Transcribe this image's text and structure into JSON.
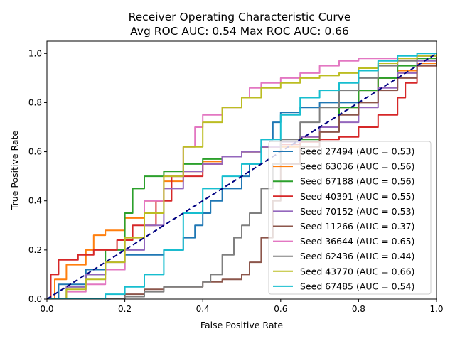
{
  "chart_data": {
    "type": "line",
    "title": "Receiver Operating Characteristic Curve",
    "subtitle": "Avg ROC AUC: 0.54  Max ROC AUC: 0.66",
    "xlabel": "False Positive Rate",
    "ylabel": "True Positive Rate",
    "xlim": [
      0,
      1
    ],
    "ylim": [
      0,
      1.05
    ],
    "xticks": [
      0.0,
      0.2,
      0.4,
      0.6,
      0.8,
      1.0
    ],
    "yticks": [
      0.0,
      0.2,
      0.4,
      0.6,
      0.8,
      1.0
    ],
    "xtick_labels": [
      "0.0",
      "0.2",
      "0.4",
      "0.6",
      "0.8",
      "1.0"
    ],
    "ytick_labels": [
      "0.0",
      "0.2",
      "0.4",
      "0.6",
      "0.8",
      "1.0"
    ],
    "grid": false,
    "legend_position": "lower-right",
    "diagonal": {
      "x": [
        0,
        1
      ],
      "y": [
        0,
        1
      ],
      "color": "#000080",
      "style": "dashed"
    },
    "series": [
      {
        "name": "Seed 27494 (AUC = 0.53)",
        "color": "#1f77b4",
        "x": [
          0,
          0.03,
          0.1,
          0.2,
          0.25,
          0.3,
          0.35,
          0.38,
          0.4,
          0.42,
          0.45,
          0.5,
          0.52,
          0.55,
          0.58,
          0.6,
          0.62,
          0.65,
          0.7,
          0.75,
          0.8,
          0.85,
          0.9,
          0.95,
          1.0
        ],
        "y": [
          0,
          0.06,
          0.12,
          0.18,
          0.18,
          0.2,
          0.25,
          0.3,
          0.35,
          0.4,
          0.45,
          0.5,
          0.55,
          0.65,
          0.72,
          0.76,
          0.76,
          0.78,
          0.8,
          0.8,
          0.85,
          0.9,
          0.93,
          0.96,
          1.0
        ]
      },
      {
        "name": "Seed 63036 (AUC = 0.56)",
        "color": "#ff7f0e",
        "x": [
          0,
          0.02,
          0.05,
          0.1,
          0.12,
          0.15,
          0.2,
          0.25,
          0.3,
          0.35,
          0.4,
          0.45,
          0.5,
          0.55,
          0.6,
          0.65,
          0.7,
          0.75,
          0.8,
          0.85,
          0.9,
          0.95,
          1.0
        ],
        "y": [
          0,
          0.08,
          0.14,
          0.2,
          0.26,
          0.28,
          0.33,
          0.4,
          0.48,
          0.52,
          0.56,
          0.58,
          0.6,
          0.62,
          0.62,
          0.66,
          0.7,
          0.78,
          0.85,
          0.9,
          0.93,
          0.96,
          1.0
        ]
      },
      {
        "name": "Seed 67188 (AUC = 0.56)",
        "color": "#2ca02c",
        "x": [
          0,
          0.05,
          0.1,
          0.15,
          0.2,
          0.22,
          0.25,
          0.3,
          0.35,
          0.4,
          0.45,
          0.5,
          0.55,
          0.6,
          0.65,
          0.7,
          0.75,
          0.8,
          0.85,
          0.9,
          0.95,
          1.0
        ],
        "y": [
          0,
          0.05,
          0.1,
          0.2,
          0.35,
          0.45,
          0.5,
          0.52,
          0.55,
          0.57,
          0.58,
          0.6,
          0.62,
          0.63,
          0.65,
          0.7,
          0.78,
          0.85,
          0.9,
          0.95,
          0.98,
          1.0
        ]
      },
      {
        "name": "Seed 40391 (AUC = 0.55)",
        "color": "#d62728",
        "x": [
          0,
          0.01,
          0.03,
          0.08,
          0.12,
          0.18,
          0.22,
          0.28,
          0.32,
          0.4,
          0.45,
          0.5,
          0.55,
          0.6,
          0.65,
          0.7,
          0.75,
          0.8,
          0.85,
          0.9,
          0.92,
          0.95,
          1.0
        ],
        "y": [
          0,
          0.1,
          0.16,
          0.18,
          0.2,
          0.24,
          0.3,
          0.4,
          0.5,
          0.55,
          0.58,
          0.6,
          0.62,
          0.63,
          0.64,
          0.65,
          0.66,
          0.7,
          0.75,
          0.82,
          0.88,
          0.95,
          1.0
        ]
      },
      {
        "name": "Seed 70152 (AUC = 0.53)",
        "color": "#9467bd",
        "x": [
          0,
          0.05,
          0.1,
          0.15,
          0.2,
          0.25,
          0.3,
          0.35,
          0.4,
          0.45,
          0.5,
          0.55,
          0.6,
          0.65,
          0.7,
          0.75,
          0.8,
          0.85,
          0.9,
          0.95,
          1.0
        ],
        "y": [
          0,
          0.05,
          0.1,
          0.15,
          0.2,
          0.3,
          0.45,
          0.52,
          0.55,
          0.58,
          0.6,
          0.62,
          0.64,
          0.66,
          0.7,
          0.72,
          0.78,
          0.86,
          0.92,
          0.97,
          1.0
        ]
      },
      {
        "name": "Seed 11266 (AUC = 0.37)",
        "color": "#8c564b",
        "x": [
          0,
          0.1,
          0.2,
          0.25,
          0.3,
          0.4,
          0.45,
          0.5,
          0.52,
          0.55,
          0.58,
          0.6,
          0.65,
          0.7,
          0.75,
          0.8,
          0.85,
          0.9,
          0.95,
          1.0
        ],
        "y": [
          0,
          0.0,
          0.02,
          0.04,
          0.05,
          0.07,
          0.08,
          0.1,
          0.15,
          0.25,
          0.4,
          0.55,
          0.62,
          0.68,
          0.75,
          0.8,
          0.85,
          0.9,
          0.95,
          1.0
        ]
      },
      {
        "name": "Seed 36644 (AUC = 0.65)",
        "color": "#e377c2",
        "x": [
          0,
          0.05,
          0.1,
          0.15,
          0.2,
          0.25,
          0.3,
          0.35,
          0.38,
          0.4,
          0.45,
          0.5,
          0.52,
          0.55,
          0.6,
          0.65,
          0.7,
          0.75,
          0.8,
          0.85,
          0.9,
          0.95,
          1.0
        ],
        "y": [
          0,
          0.03,
          0.06,
          0.12,
          0.25,
          0.4,
          0.5,
          0.62,
          0.7,
          0.75,
          0.78,
          0.82,
          0.86,
          0.88,
          0.9,
          0.92,
          0.95,
          0.97,
          0.98,
          0.98,
          0.98,
          0.99,
          1.0
        ]
      },
      {
        "name": "Seed 62436 (AUC = 0.44)",
        "color": "#7f7f7f",
        "x": [
          0,
          0.1,
          0.2,
          0.25,
          0.3,
          0.4,
          0.42,
          0.45,
          0.48,
          0.5,
          0.52,
          0.55,
          0.58,
          0.6,
          0.65,
          0.7,
          0.75,
          0.8,
          0.85,
          0.9,
          0.95,
          1.0
        ],
        "y": [
          0,
          0.0,
          0.01,
          0.03,
          0.05,
          0.07,
          0.1,
          0.18,
          0.25,
          0.3,
          0.35,
          0.45,
          0.55,
          0.65,
          0.72,
          0.78,
          0.85,
          0.9,
          0.95,
          0.97,
          0.99,
          1.0
        ]
      },
      {
        "name": "Seed 43770 (AUC = 0.66)",
        "color": "#bcbd22",
        "x": [
          0,
          0.05,
          0.1,
          0.15,
          0.2,
          0.25,
          0.3,
          0.35,
          0.4,
          0.45,
          0.5,
          0.55,
          0.6,
          0.65,
          0.7,
          0.75,
          0.8,
          0.85,
          0.9,
          0.95,
          1.0
        ],
        "y": [
          0,
          0.04,
          0.08,
          0.15,
          0.25,
          0.35,
          0.5,
          0.62,
          0.72,
          0.78,
          0.82,
          0.86,
          0.88,
          0.9,
          0.91,
          0.92,
          0.94,
          0.96,
          0.98,
          0.99,
          1.0
        ]
      },
      {
        "name": "Seed 67485 (AUC = 0.54)",
        "color": "#17becf",
        "x": [
          0,
          0.05,
          0.1,
          0.15,
          0.2,
          0.25,
          0.3,
          0.35,
          0.4,
          0.45,
          0.5,
          0.55,
          0.6,
          0.65,
          0.7,
          0.75,
          0.8,
          0.85,
          0.9,
          0.95,
          1.0
        ],
        "y": [
          0,
          0.0,
          0.0,
          0.02,
          0.05,
          0.1,
          0.2,
          0.35,
          0.45,
          0.5,
          0.55,
          0.65,
          0.75,
          0.82,
          0.85,
          0.88,
          0.93,
          0.97,
          0.99,
          1.0,
          1.0
        ]
      }
    ]
  }
}
